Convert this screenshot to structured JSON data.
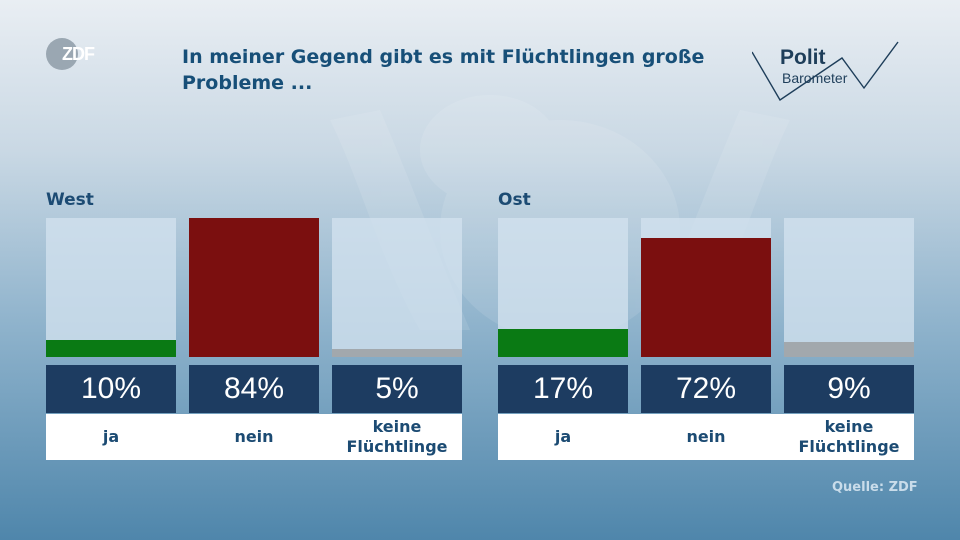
{
  "header": {
    "logo_text": "ZDF",
    "title": "In meiner Gegend gibt es mit Flüchtlingen große Probleme ...",
    "brand_top": "Polit",
    "brand_bottom": "Barometer"
  },
  "colors": {
    "ja": "#0a7a14",
    "nein": "#7b0f0f",
    "keine": "#a2a8ad",
    "value_box": "#1d3c61",
    "title": "#174f78"
  },
  "chart_data": [
    {
      "type": "bar",
      "title": "West",
      "categories": [
        "ja",
        "nein",
        "keine Flüchtlinge"
      ],
      "values": [
        10,
        84,
        5
      ],
      "value_labels": [
        "10%",
        "84%",
        "5%"
      ],
      "ylim": [
        0,
        84
      ]
    },
    {
      "type": "bar",
      "title": "Ost",
      "categories": [
        "ja",
        "nein",
        "keine Flüchtlinge"
      ],
      "values": [
        17,
        72,
        9
      ],
      "value_labels": [
        "17%",
        "72%",
        "9%"
      ],
      "ylim": [
        0,
        84
      ]
    }
  ],
  "source": "Quelle: ZDF"
}
